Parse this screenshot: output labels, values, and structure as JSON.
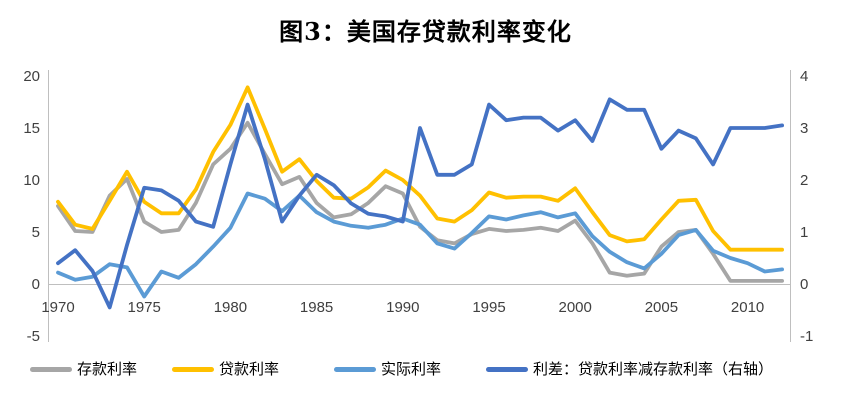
{
  "title": "图3：美国存贷款利率变化",
  "colors": {
    "deposit_rate": "#A6A6A6",
    "loan_rate": "#FFC000",
    "real_rate": "#5B9BD5",
    "spread": "#4472C4",
    "axis_line": "#BFBFBF",
    "tick_text": "#404040",
    "title_text": "#000000"
  },
  "chart_data": {
    "type": "line",
    "title": "图3：美国存贷款利率变化",
    "grid": false,
    "legend_position": "bottom",
    "x": [
      1970,
      1971,
      1972,
      1973,
      1974,
      1975,
      1976,
      1977,
      1978,
      1979,
      1980,
      1981,
      1982,
      1983,
      1984,
      1985,
      1986,
      1987,
      1988,
      1989,
      1990,
      1991,
      1992,
      1993,
      1994,
      1995,
      1996,
      1997,
      1998,
      1999,
      2000,
      2001,
      2002,
      2003,
      2004,
      2005,
      2006,
      2007,
      2008,
      2009,
      2010,
      2011,
      2012
    ],
    "x_tick_labels": [
      "1970",
      "1975",
      "1980",
      "1985",
      "1990",
      "1995",
      "2000",
      "2005",
      "2010"
    ],
    "left_axis": {
      "min": -5,
      "max": 20,
      "ticks": [
        20,
        15,
        10,
        5,
        0,
        -5
      ]
    },
    "right_axis": {
      "min": -1,
      "max": 4,
      "ticks": [
        4,
        3,
        2,
        1,
        0,
        -1
      ]
    },
    "series": [
      {
        "id": "deposit-rate",
        "name": "存款利率",
        "axis": "left",
        "color": "#A6A6A6",
        "values": [
          7.5,
          5.1,
          5.0,
          8.5,
          10.1,
          6.0,
          5.0,
          5.2,
          7.8,
          11.5,
          13.0,
          15.5,
          12.5,
          9.6,
          10.3,
          7.8,
          6.4,
          6.7,
          7.8,
          9.4,
          8.7,
          5.5,
          4.2,
          3.9,
          4.8,
          5.3,
          5.1,
          5.2,
          5.4,
          5.1,
          6.1,
          3.9,
          1.1,
          0.8,
          1.0,
          3.6,
          5.0,
          5.2,
          2.9,
          0.3,
          0.3,
          0.3,
          0.3
        ]
      },
      {
        "id": "loan-rate",
        "name": "贷款利率",
        "axis": "left",
        "color": "#FFC000",
        "values": [
          7.9,
          5.7,
          5.3,
          8.0,
          10.8,
          7.9,
          6.8,
          6.8,
          9.1,
          12.7,
          15.3,
          18.9,
          14.9,
          10.8,
          12.0,
          9.9,
          8.3,
          8.2,
          9.3,
          10.9,
          10.0,
          8.5,
          6.3,
          6.0,
          7.1,
          8.8,
          8.3,
          8.4,
          8.4,
          8.0,
          9.2,
          6.9,
          4.7,
          4.1,
          4.3,
          6.2,
          8.0,
          8.1,
          5.1,
          3.3,
          3.3,
          3.3,
          3.3
        ]
      },
      {
        "id": "real-rate",
        "name": "实际利率",
        "axis": "left",
        "color": "#5B9BD5",
        "values": [
          1.1,
          0.4,
          0.7,
          1.9,
          1.6,
          -1.2,
          1.2,
          0.6,
          1.9,
          3.6,
          5.4,
          8.7,
          8.2,
          7.0,
          8.5,
          6.9,
          6.0,
          5.6,
          5.4,
          5.7,
          6.3,
          5.7,
          3.9,
          3.4,
          4.9,
          6.5,
          6.2,
          6.6,
          6.9,
          6.4,
          6.8,
          4.6,
          3.1,
          2.1,
          1.5,
          2.9,
          4.7,
          5.2,
          3.2,
          2.5,
          2.0,
          1.2,
          1.4
        ]
      },
      {
        "id": "spread-loan-minus-deposit",
        "name": "利差：贷款利率减存款利率（右轴）",
        "axis": "right",
        "color": "#4472C4",
        "values": [
          0.4,
          0.65,
          0.25,
          -0.45,
          0.75,
          1.85,
          1.8,
          1.6,
          1.2,
          1.1,
          2.3,
          3.45,
          2.4,
          1.2,
          1.7,
          2.1,
          1.9,
          1.55,
          1.35,
          1.3,
          1.2,
          3.0,
          2.1,
          2.1,
          2.3,
          3.45,
          3.15,
          3.2,
          3.2,
          2.95,
          3.15,
          2.75,
          3.55,
          3.35,
          3.35,
          2.6,
          2.95,
          2.8,
          2.3,
          3.0,
          3.0,
          3.0,
          3.05
        ]
      }
    ]
  }
}
